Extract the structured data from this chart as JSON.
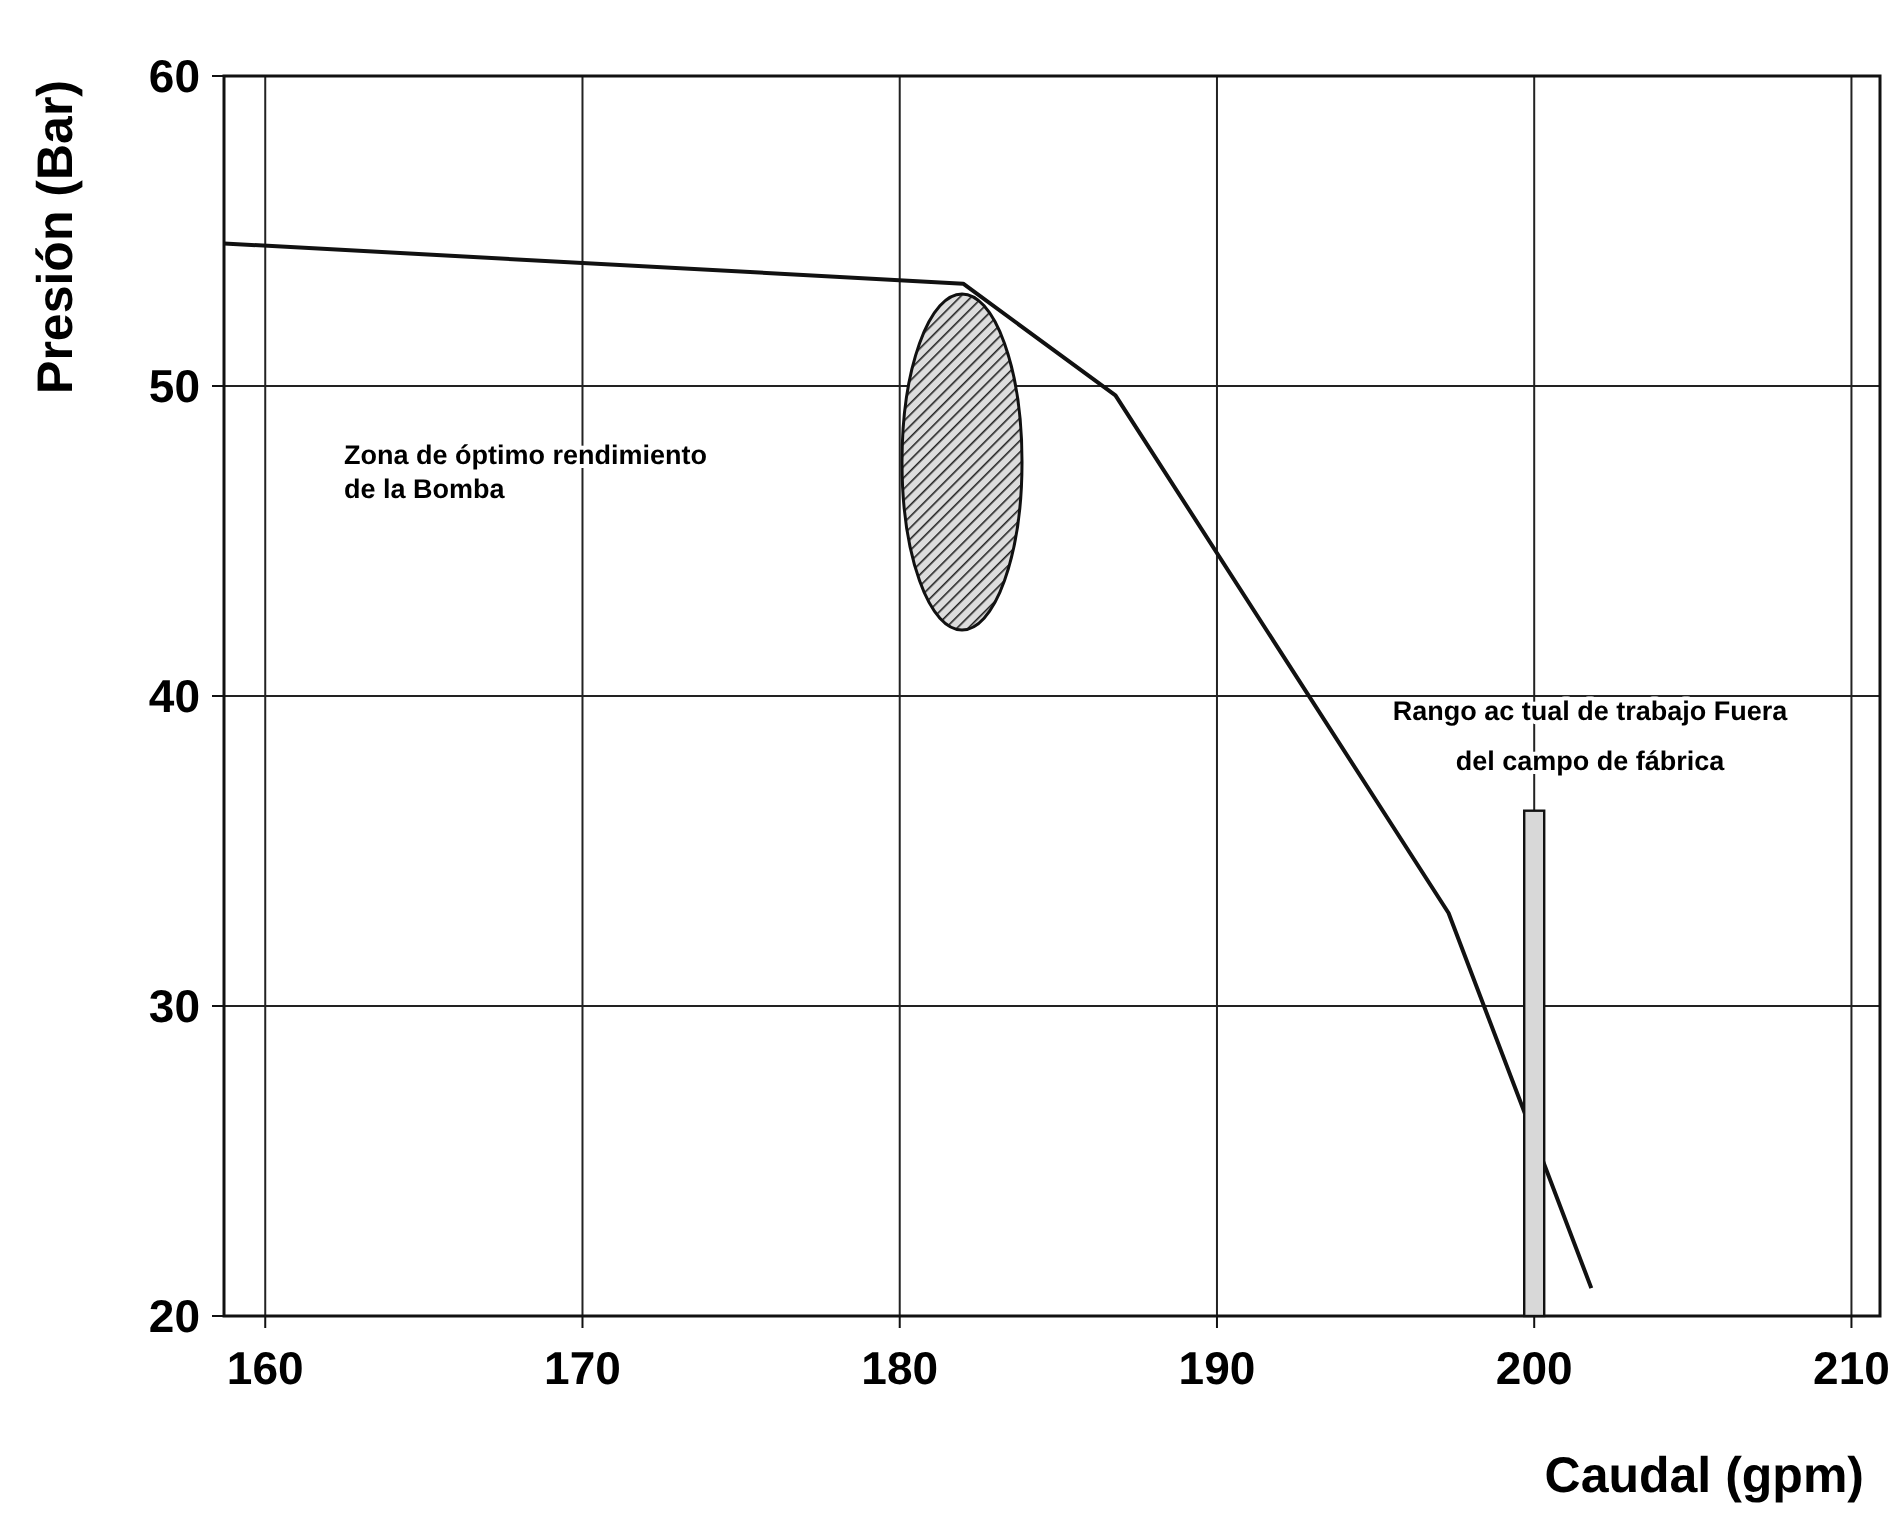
{
  "chart_data": {
    "type": "line",
    "xlabel": "Caudal (gpm)",
    "ylabel": "Presión (Bar)",
    "x": [
      158.7,
      182.0,
      186.8,
      197.3,
      201.8
    ],
    "series": [
      {
        "color": "#111111",
        "values": [
          54.6,
          53.3,
          49.7,
          33.0,
          20.9
        ]
      },
      {
        "type": "bar",
        "color": "#d8d8d8",
        "x": [
          200
        ],
        "base": [
          20
        ],
        "values": [
          16.3
        ]
      }
    ],
    "xlim": [
      158.7,
      210.9
    ],
    "xticks": [
      160,
      170,
      180,
      190,
      200,
      210
    ],
    "ylim": [
      20,
      60
    ],
    "yticks": [
      20,
      30,
      40,
      50,
      60
    ],
    "grid": true,
    "annotations": [
      "Zona de óptimo rendimiento\nde la Bomba",
      "Rango ac tual de trabajo Fuera\ndel campo de fábrica"
    ]
  }
}
